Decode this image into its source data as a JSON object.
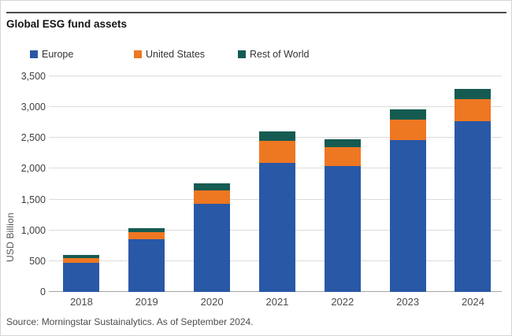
{
  "title": "Global ESG fund assets",
  "source": "Source: Morningstar Sustainalytics. As of September 2024.",
  "colors": {
    "grid": "#dbdbdb",
    "axis": "#a3a3a3",
    "top_rule": "#4a4a4a"
  },
  "chart_data": {
    "type": "bar",
    "stacked": true,
    "title": "Global ESG fund assets",
    "ylabel": "USD Billion",
    "xlabel": "",
    "ylim": [
      0,
      3500
    ],
    "ytick_step": 500,
    "ytick_labels": [
      "0",
      "500",
      "1,000",
      "1,500",
      "2,000",
      "2,500",
      "3,000",
      "3,500"
    ],
    "grid": true,
    "legend_position": "top",
    "categories": [
      "2018",
      "2019",
      "2020",
      "2021",
      "2022",
      "2023",
      "2024"
    ],
    "series": [
      {
        "name": "Europe",
        "color": "#2958A6",
        "values": [
          470,
          860,
          1430,
          2090,
          2050,
          2470,
          2770
        ]
      },
      {
        "name": "United States",
        "color": "#EE7722",
        "values": [
          85,
          115,
          215,
          360,
          300,
          330,
          360
        ]
      },
      {
        "name": "Rest of World",
        "color": "#155B52",
        "values": [
          40,
          65,
          120,
          160,
          130,
          160,
          170
        ]
      }
    ],
    "totals": [
      595,
      1040,
      1765,
      2610,
      2480,
      2960,
      3300
    ]
  }
}
